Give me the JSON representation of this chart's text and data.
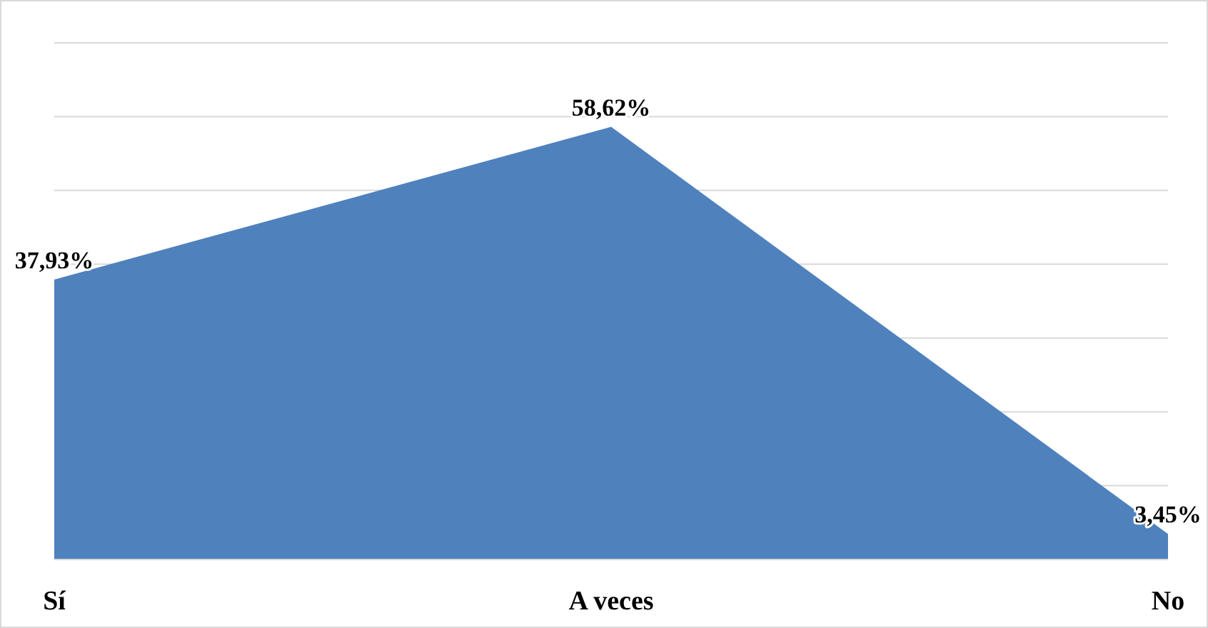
{
  "chart_data": {
    "type": "area",
    "categories": [
      "Sí",
      "A veces",
      "No"
    ],
    "series": [
      {
        "color": "#4f81bd",
        "values": [
          37.93,
          58.62,
          3.45
        ],
        "value_labels": [
          "37,93%",
          "58,62%",
          "3,45%"
        ]
      }
    ],
    "ylim": [
      0,
      70
    ],
    "yticks": [
      {
        "value": 0,
        "label": null
      },
      {
        "value": 10,
        "label": null
      },
      {
        "value": 20,
        "label": null
      },
      {
        "value": 30,
        "label": null
      },
      {
        "value": 40,
        "label": null
      },
      {
        "value": 50,
        "label": null
      },
      {
        "value": 60,
        "label": null
      },
      {
        "value": 70,
        "label": null
      }
    ],
    "grid": "y"
  }
}
